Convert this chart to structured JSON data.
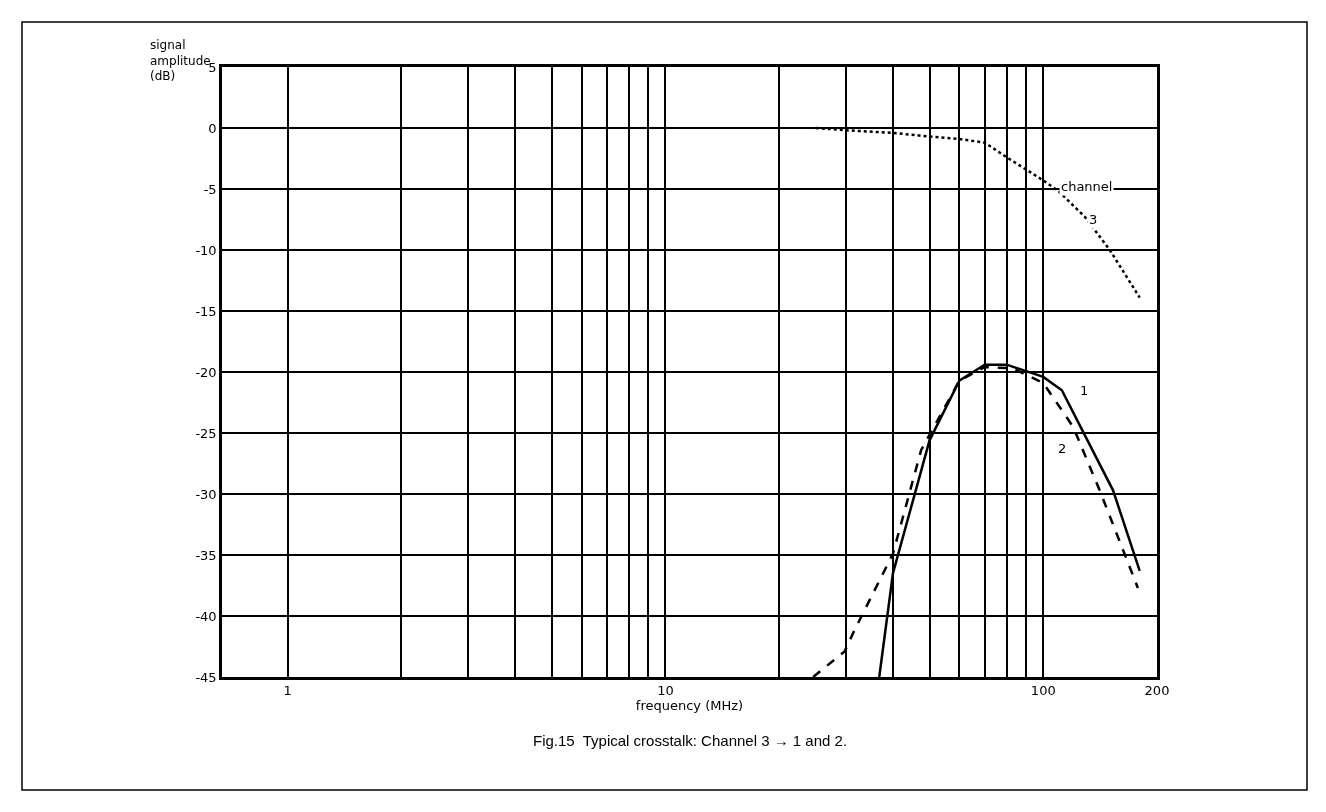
{
  "chart_data": {
    "type": "line",
    "xlabel": "frequency (MHz)",
    "ylabel": "signal\namplitude\n(dB)",
    "log": "x",
    "grid": true,
    "marker": "none",
    "xlim": [
      0.67,
      200
    ],
    "ylim": [
      -45,
      5
    ],
    "xticks": [
      1,
      {
        "value": 2,
        "label": null
      },
      {
        "value": 3,
        "label": null
      },
      {
        "value": 4,
        "label": null
      },
      {
        "value": 5,
        "label": null
      },
      {
        "value": 6,
        "label": null
      },
      {
        "value": 7,
        "label": null
      },
      {
        "value": 8,
        "label": null
      },
      {
        "value": 9,
        "label": null
      },
      10,
      {
        "value": 20,
        "label": null
      },
      {
        "value": 30,
        "label": null
      },
      {
        "value": 40,
        "label": null
      },
      {
        "value": 50,
        "label": null
      },
      {
        "value": 60,
        "label": null
      },
      {
        "value": 70,
        "label": null
      },
      {
        "value": 80,
        "label": null
      },
      {
        "value": 90,
        "label": null
      },
      100,
      200
    ],
    "yticks": [
      5,
      0,
      -5,
      -10,
      -15,
      -20,
      -25,
      -30,
      -35,
      -40,
      -45
    ],
    "series": [
      {
        "color": "#000000",
        "line_style": "dotted",
        "x": [
          25,
          30.5,
          40,
          50,
          60,
          70,
          80,
          90,
          100,
          110,
          129,
          150,
          180
        ],
        "values": [
          0,
          -0.2,
          -0.4,
          -0.7,
          -0.9,
          -1.2,
          -2.4,
          -3.4,
          -4.3,
          -5.2,
          -7.3,
          -10,
          -13.9
        ]
      },
      {
        "color": "#000000",
        "line_style": "solid",
        "x": [
          36.8,
          40,
          50,
          60,
          70,
          80,
          100,
          112,
          127,
          153,
          180
        ],
        "values": [
          -45,
          -36.5,
          -25.6,
          -20.7,
          -19.4,
          -19.4,
          -20.4,
          -21.5,
          -24.8,
          -29.7,
          -36.3
        ]
      },
      {
        "color": "#000000",
        "line_style": "dashed",
        "x": [
          24.6,
          29.8,
          31.6,
          40,
          47.5,
          60,
          70,
          83,
          100,
          120,
          141,
          178
        ],
        "values": [
          -45,
          -42.9,
          -41.2,
          -34.9,
          -26.4,
          -20.7,
          -19.6,
          -19.7,
          -20.9,
          -24.5,
          -29.7,
          -37.7
        ]
      }
    ],
    "annotations": [
      "channel",
      "3",
      "1",
      "2",
      "Fig.15  Typical crosstalk: Channel 3 → 1 and 2."
    ]
  }
}
